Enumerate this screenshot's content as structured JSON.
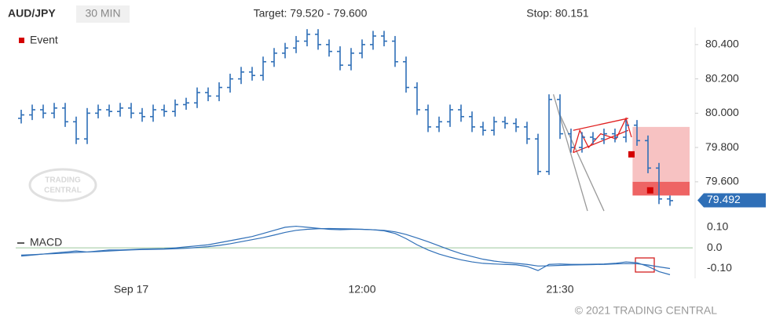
{
  "header": {
    "symbol": "AUD/JPY",
    "interval": "30 MIN",
    "target": "Target: 79.520 - 79.600",
    "stop": "Stop: 80.151"
  },
  "footer": {
    "copyright": "© 2021 TRADING CENTRAL"
  },
  "logo": [
    "TRADING",
    "CENTRAL"
  ],
  "chart_data": [
    {
      "type": "ohlc",
      "color": "#2f6fb7",
      "categories": [
        null,
        null,
        null,
        null,
        null,
        null,
        null,
        null,
        null,
        null,
        "Sep 17",
        null,
        null,
        null,
        null,
        null,
        null,
        null,
        null,
        null,
        null,
        null,
        null,
        null,
        null,
        null,
        null,
        null,
        null,
        null,
        null,
        "12:00",
        null,
        null,
        null,
        null,
        null,
        null,
        null,
        null,
        null,
        null,
        null,
        null,
        null,
        null,
        null,
        null,
        null,
        "21:30",
        null,
        null,
        null,
        null,
        null,
        null,
        null,
        null,
        null,
        null
      ],
      "open": [
        79.97,
        79.99,
        80.02,
        80.0,
        80.03,
        79.95,
        79.85,
        80.0,
        80.02,
        80.01,
        80.03,
        80.0,
        79.98,
        80.02,
        80.01,
        80.05,
        80.06,
        80.12,
        80.1,
        80.15,
        80.2,
        80.24,
        80.22,
        80.3,
        80.35,
        80.38,
        80.42,
        80.46,
        80.4,
        80.36,
        80.28,
        80.35,
        80.4,
        80.45,
        80.42,
        80.3,
        80.15,
        80.02,
        79.92,
        79.95,
        80.02,
        79.98,
        79.92,
        79.9,
        79.95,
        79.94,
        79.92,
        79.85,
        79.66,
        80.08,
        79.88,
        79.8,
        79.86,
        79.85,
        79.88,
        79.86,
        79.93,
        79.84,
        79.68,
        79.5
      ],
      "high": [
        80.02,
        80.05,
        80.05,
        80.06,
        80.06,
        79.98,
        80.03,
        80.05,
        80.05,
        80.06,
        80.06,
        80.03,
        80.05,
        80.05,
        80.08,
        80.09,
        80.15,
        80.15,
        80.18,
        80.23,
        80.27,
        80.27,
        80.33,
        80.38,
        80.41,
        80.45,
        80.49,
        80.49,
        80.43,
        80.39,
        80.38,
        80.43,
        80.48,
        80.48,
        80.45,
        80.33,
        80.18,
        80.05,
        79.98,
        80.05,
        80.05,
        80.01,
        79.95,
        79.98,
        79.98,
        79.97,
        79.95,
        79.88,
        80.11,
        80.11,
        79.91,
        79.89,
        79.89,
        79.91,
        79.91,
        79.96,
        79.96,
        79.87,
        79.71,
        79.52
      ],
      "low": [
        79.94,
        79.96,
        79.97,
        79.97,
        79.92,
        79.82,
        79.82,
        79.97,
        79.98,
        79.98,
        79.97,
        79.95,
        79.95,
        79.98,
        79.98,
        80.02,
        80.03,
        80.07,
        80.07,
        80.12,
        80.17,
        80.19,
        80.19,
        80.27,
        80.32,
        80.35,
        80.39,
        80.37,
        80.33,
        80.25,
        80.25,
        80.32,
        80.37,
        80.39,
        80.27,
        80.12,
        79.99,
        79.89,
        79.89,
        79.92,
        79.95,
        79.89,
        79.87,
        79.87,
        79.91,
        79.89,
        79.82,
        79.64,
        79.64,
        79.85,
        79.77,
        79.77,
        79.82,
        79.82,
        79.83,
        79.83,
        79.81,
        79.65,
        79.47,
        79.46
      ],
      "close": [
        79.99,
        80.02,
        80.0,
        80.03,
        79.95,
        79.85,
        80.0,
        80.02,
        80.01,
        80.03,
        80.0,
        79.98,
        80.02,
        80.01,
        80.05,
        80.06,
        80.12,
        80.1,
        80.15,
        80.2,
        80.24,
        80.22,
        80.3,
        80.35,
        80.38,
        80.42,
        80.46,
        80.4,
        80.36,
        80.28,
        80.35,
        80.4,
        80.45,
        80.42,
        80.3,
        80.15,
        80.02,
        79.92,
        79.95,
        80.02,
        79.98,
        79.92,
        79.9,
        79.95,
        79.94,
        79.92,
        79.85,
        79.66,
        80.08,
        79.88,
        79.8,
        79.86,
        79.85,
        79.88,
        79.86,
        79.93,
        79.84,
        79.68,
        79.5,
        79.49
      ],
      "ylim": [
        79.38,
        80.5
      ],
      "yticks": [
        {
          "value": 80.4,
          "label": "80.400"
        },
        {
          "value": 80.2,
          "label": "80.200"
        },
        {
          "value": 80.0,
          "label": "80.000"
        },
        {
          "value": 79.8,
          "label": "79.800"
        },
        {
          "value": 79.6,
          "label": "79.600"
        }
      ],
      "legend": {
        "label": "Event",
        "color": "#d40000"
      },
      "events": [
        {
          "index": 55.5,
          "value": 79.76
        },
        {
          "index": 57.2,
          "value": 79.55
        }
      ],
      "zones": [
        {
          "start": 55.6,
          "from": 79.6,
          "to": 79.92,
          "color": "#f7c2c2"
        },
        {
          "start": 55.6,
          "from": 79.52,
          "to": 79.6,
          "color": "#ee6464"
        }
      ],
      "lines": [
        {
          "color": "#999999",
          "points": [
            [
              48.4,
              80.11
            ],
            [
              51.5,
              79.43
            ]
          ]
        },
        {
          "color": "#999999",
          "points": [
            [
              49,
              79.99
            ],
            [
              53,
              79.43
            ]
          ]
        },
        {
          "color": "#e02020",
          "points": [
            [
              50.2,
              79.9
            ],
            [
              55.2,
              79.97
            ]
          ]
        },
        {
          "color": "#e02020",
          "points": [
            [
              50.2,
              79.77
            ],
            [
              55.2,
              79.9
            ]
          ]
        },
        {
          "color": "#e02020",
          "points": [
            [
              50.2,
              79.77
            ],
            [
              50.8,
              79.9
            ],
            [
              51.6,
              79.8
            ],
            [
              52.7,
              79.88
            ],
            [
              54.1,
              79.85
            ],
            [
              55,
              79.97
            ],
            [
              55.5,
              79.86
            ]
          ]
        }
      ],
      "last": {
        "value": 79.492,
        "color": "#2f6fb7"
      }
    },
    {
      "type": "line",
      "title": "MACD",
      "series": [
        {
          "color": "#2f6fb7",
          "values": [
            -0.04,
            -0.035,
            -0.03,
            -0.025,
            -0.02,
            -0.015,
            -0.02,
            -0.015,
            -0.01,
            -0.01,
            -0.008,
            -0.006,
            -0.005,
            -0.004,
            0.0,
            0.005,
            0.01,
            0.015,
            0.025,
            0.035,
            0.045,
            0.055,
            0.07,
            0.085,
            0.1,
            0.105,
            0.1,
            0.095,
            0.09,
            0.088,
            0.09,
            0.09,
            0.088,
            0.083,
            0.07,
            0.045,
            0.015,
            -0.01,
            -0.03,
            -0.045,
            -0.058,
            -0.068,
            -0.075,
            -0.078,
            -0.08,
            -0.082,
            -0.09,
            -0.11,
            -0.08,
            -0.078,
            -0.08,
            -0.08,
            -0.079,
            -0.078,
            -0.075,
            -0.068,
            -0.072,
            -0.09,
            -0.115,
            -0.13
          ]
        },
        {
          "color": "#2f6fb7",
          "values": [
            -0.035,
            -0.033,
            -0.03,
            -0.028,
            -0.025,
            -0.022,
            -0.02,
            -0.018,
            -0.015,
            -0.012,
            -0.01,
            -0.008,
            -0.007,
            -0.006,
            -0.004,
            -0.002,
            0.002,
            0.006,
            0.012,
            0.02,
            0.03,
            0.04,
            0.05,
            0.062,
            0.075,
            0.085,
            0.09,
            0.093,
            0.094,
            0.093,
            0.092,
            0.09,
            0.088,
            0.085,
            0.078,
            0.065,
            0.048,
            0.03,
            0.01,
            -0.01,
            -0.028,
            -0.042,
            -0.055,
            -0.064,
            -0.07,
            -0.075,
            -0.08,
            -0.088,
            -0.087,
            -0.085,
            -0.083,
            -0.082,
            -0.081,
            -0.08,
            -0.078,
            -0.076,
            -0.077,
            -0.083,
            -0.092,
            -0.1
          ]
        }
      ],
      "ylim": [
        -0.14,
        0.13
      ],
      "yticks": [
        {
          "value": 0.1,
          "label": "0.10"
        },
        {
          "value": 0,
          "label": "0.0"
        },
        {
          "value": -0.1,
          "label": "-0.10"
        }
      ],
      "zero_line_color": "#9cc79c"
    }
  ]
}
